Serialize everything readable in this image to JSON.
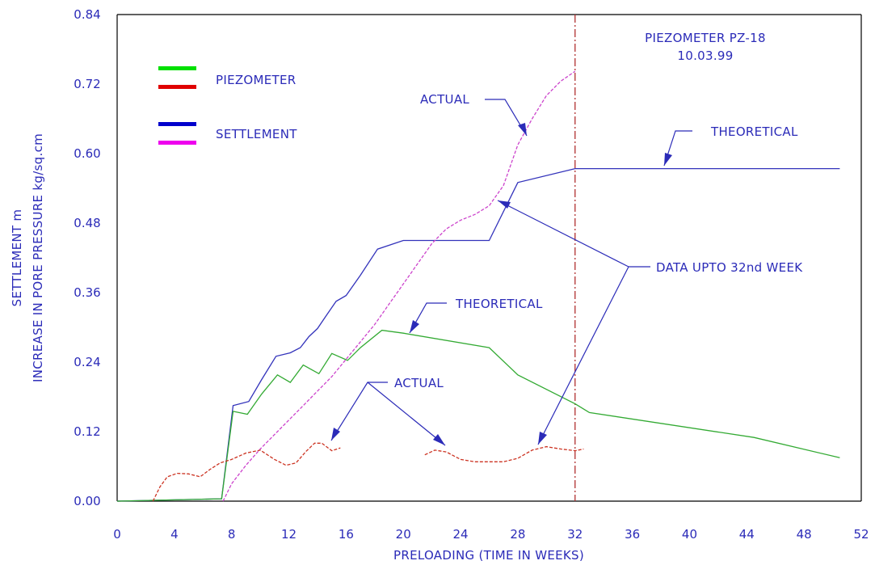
{
  "chart_data": {
    "type": "line",
    "title": "PIEZOMETER PZ-18",
    "subtitle": "10.03.99",
    "xlabel": "PRELOADING (TIME IN WEEKS)",
    "ylabel_line1": "SETTLEMENT m",
    "ylabel_line2": "INCREASE IN PORE PRESSURE kg/sq.cm",
    "xlim": [
      0,
      52
    ],
    "ylim": [
      0,
      0.84
    ],
    "x_ticks": [
      "0",
      "4",
      "8",
      "12",
      "16",
      "20",
      "24",
      "28",
      "32",
      "36",
      "40",
      "44",
      "48",
      "52"
    ],
    "y_ticks": [
      "0.00",
      "0.12",
      "0.24",
      "0.36",
      "0.48",
      "0.60",
      "0.72",
      "0.84"
    ],
    "cutoff_week": 32,
    "legend": {
      "piezometer_label": "PIEZOMETER",
      "settlement_label": "SETTLEMENT",
      "piezometer_colors": [
        "#00e000",
        "#e00000"
      ],
      "settlement_colors": [
        "#0000cc",
        "#ee00ee"
      ]
    },
    "annotations": {
      "actual_settlement": "ACTUAL",
      "theoretical_settlement": "THEORETICAL",
      "theoretical_piezometer": "THEORETICAL",
      "actual_piezometer": "ACTUAL",
      "data_upto": "DATA UPTO 32nd WEEK"
    },
    "series": [
      {
        "name": "SETTLEMENT — THEORETICAL",
        "color": "#3333bb",
        "style": "solid",
        "x": [
          0,
          7.3,
          8.1,
          9.2,
          10.1,
          11.1,
          12.1,
          12.8,
          13.4,
          14.0,
          14.6,
          15.3,
          16.0,
          17.0,
          18.2,
          20.0,
          26.0,
          28.0,
          32.0,
          50.5
        ],
        "y": [
          0,
          0.004,
          0.165,
          0.172,
          0.21,
          0.25,
          0.256,
          0.265,
          0.284,
          0.298,
          0.32,
          0.345,
          0.355,
          0.39,
          0.435,
          0.45,
          0.45,
          0.55,
          0.574,
          0.574
        ]
      },
      {
        "name": "SETTLEMENT — ACTUAL",
        "color": "#cc44cc",
        "style": "dashed",
        "x": [
          7.4,
          8.0,
          9.0,
          10.0,
          11.0,
          12.0,
          13.0,
          14.0,
          15.0,
          16.0,
          17.0,
          18.0,
          19.0,
          20.0,
          21.0,
          22.0,
          23.0,
          24.0,
          25.0,
          26.0,
          27.0,
          28.0,
          29.0,
          30.0,
          31.0,
          32.0
        ],
        "y": [
          0.0,
          0.03,
          0.062,
          0.09,
          0.115,
          0.14,
          0.165,
          0.19,
          0.215,
          0.245,
          0.275,
          0.305,
          0.34,
          0.375,
          0.41,
          0.445,
          0.47,
          0.485,
          0.495,
          0.51,
          0.545,
          0.615,
          0.66,
          0.7,
          0.725,
          0.742
        ]
      },
      {
        "name": "PIEZOMETER — THEORETICAL",
        "color": "#33aa33",
        "style": "solid",
        "x": [
          0,
          7.3,
          8.1,
          9.1,
          10.1,
          11.2,
          12.1,
          13.0,
          14.1,
          15.0,
          16.1,
          17.0,
          18.5,
          20.0,
          26.0,
          28.0,
          32.0,
          33.0,
          44.5,
          50.5
        ],
        "y": [
          0,
          0.004,
          0.155,
          0.15,
          0.185,
          0.218,
          0.205,
          0.235,
          0.22,
          0.255,
          0.243,
          0.265,
          0.295,
          0.29,
          0.265,
          0.218,
          0.168,
          0.153,
          0.11,
          0.075
        ]
      },
      {
        "name": "PIEZOMETER — ACTUAL",
        "color": "#cc3322",
        "style": "dashed",
        "segments": [
          {
            "x": [
              2.5,
              3.0,
              3.5,
              4.2,
              5.0,
              5.8,
              6.5,
              7.2,
              8.0,
              9.0,
              10.0,
              11.0,
              11.8,
              12.5,
              13.2,
              13.8,
              14.3,
              15.0,
              15.6
            ],
            "y": [
              0.0,
              0.025,
              0.042,
              0.048,
              0.047,
              0.042,
              0.055,
              0.066,
              0.072,
              0.083,
              0.088,
              0.072,
              0.062,
              0.066,
              0.086,
              0.1,
              0.1,
              0.087,
              0.092
            ]
          },
          {
            "x": [
              21.5,
              22.2,
              23.0,
              24.0,
              25.0,
              26.0,
              27.0,
              28.0,
              29.0,
              30.0,
              31.0,
              32.0,
              32.6
            ],
            "y": [
              0.08,
              0.088,
              0.085,
              0.072,
              0.068,
              0.068,
              0.068,
              0.074,
              0.088,
              0.094,
              0.09,
              0.087,
              0.09
            ]
          }
        ]
      }
    ]
  }
}
